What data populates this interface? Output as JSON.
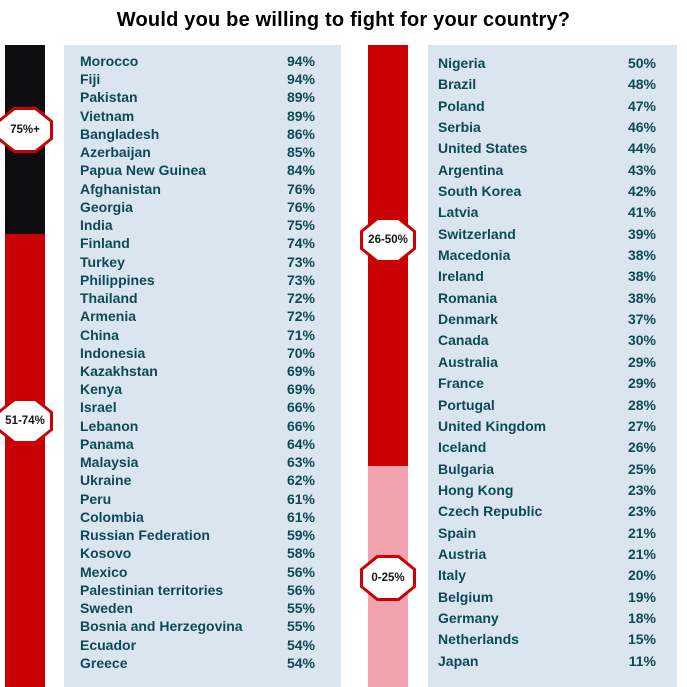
{
  "colors": {
    "black": "#0e0e10",
    "red": "#c90004",
    "pink": "#f2a3ad",
    "panel_bg": "#dbe5ef",
    "text": "#0b4b54",
    "badge_border": "#c90004",
    "badge_text": "#161616",
    "title_color": "#000000"
  },
  "chart_data": {
    "type": "bar",
    "title": "Would you be willing to fight for your country?",
    "unit": "%",
    "legend_position": "left-of-each-column",
    "grid": false,
    "value_range": [
      0,
      100
    ],
    "groups": [
      {
        "label": "75%+",
        "color_key": "black",
        "column": "left",
        "entries": [
          [
            "Morocco",
            94
          ],
          [
            "Fiji",
            94
          ],
          [
            "Pakistan",
            89
          ],
          [
            "Vietnam",
            89
          ],
          [
            "Bangladesh",
            86
          ],
          [
            "Azerbaijan",
            85
          ],
          [
            "Papua New Guinea",
            84
          ],
          [
            "Afghanistan",
            76
          ],
          [
            "Georgia",
            76
          ],
          [
            "India",
            75
          ]
        ]
      },
      {
        "label": "51-74%",
        "color_key": "red",
        "column": "left",
        "entries": [
          [
            "Finland",
            74
          ],
          [
            "Turkey",
            73
          ],
          [
            "Philippines",
            73
          ],
          [
            "Thailand",
            72
          ],
          [
            "Armenia",
            72
          ],
          [
            "China",
            71
          ],
          [
            "Indonesia",
            70
          ],
          [
            "Kazakhstan",
            69
          ],
          [
            "Kenya",
            69
          ],
          [
            "Israel",
            66
          ],
          [
            "Lebanon",
            66
          ],
          [
            "Panama",
            64
          ],
          [
            "Malaysia",
            63
          ],
          [
            "Ukraine",
            62
          ],
          [
            "Peru",
            61
          ],
          [
            "Colombia",
            61
          ],
          [
            "Russian Federation",
            59
          ],
          [
            "Kosovo",
            58
          ],
          [
            "Mexico",
            56
          ],
          [
            "Palestinian territories",
            56
          ],
          [
            "Sweden",
            55
          ],
          [
            "Bosnia and Herzegovina",
            55
          ],
          [
            "Ecuador",
            54
          ],
          [
            "Greece",
            54
          ]
        ]
      },
      {
        "label": "26-50%",
        "color_key": "red",
        "column": "right",
        "entries": [
          [
            "Nigeria",
            50
          ],
          [
            "Brazil",
            48
          ],
          [
            "Poland",
            47
          ],
          [
            "Serbia",
            46
          ],
          [
            "United States",
            44
          ],
          [
            "Argentina",
            43
          ],
          [
            "South Korea",
            42
          ],
          [
            "Latvia",
            41
          ],
          [
            "Switzerland",
            39
          ],
          [
            "Macedonia",
            38
          ],
          [
            "Ireland",
            38
          ],
          [
            "Romania",
            38
          ],
          [
            "Denmark",
            37
          ],
          [
            "Canada",
            30
          ],
          [
            "Australia",
            29
          ],
          [
            "France",
            29
          ],
          [
            "Portugal",
            28
          ],
          [
            "United Kingdom",
            27
          ],
          [
            "Iceland",
            26
          ]
        ]
      },
      {
        "label": "0-25%",
        "color_key": "pink",
        "column": "right",
        "entries": [
          [
            "Bulgaria",
            25
          ],
          [
            "Hong Kong",
            23
          ],
          [
            "Czech Republic",
            23
          ],
          [
            "Spain",
            21
          ],
          [
            "Austria",
            21
          ],
          [
            "Italy",
            20
          ],
          [
            "Belgium",
            19
          ],
          [
            "Germany",
            18
          ],
          [
            "Netherlands",
            15
          ],
          [
            "Japan",
            11
          ]
        ]
      }
    ]
  }
}
